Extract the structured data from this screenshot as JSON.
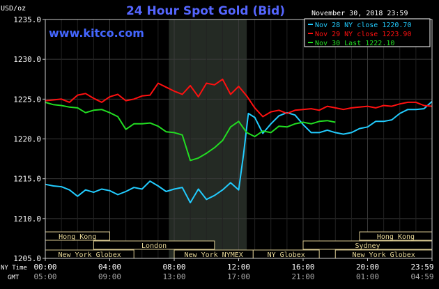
{
  "chart_data": {
    "type": "line",
    "title": "24 Hour Spot Gold (Bid)",
    "units_label": "USD/oz",
    "brand": "www.kitco.com",
    "date_label": "November 30, 2018 23:59",
    "xlabel": "",
    "ylabel": "",
    "ylim": [
      1205.0,
      1235.0
    ],
    "yticks": [
      "1235.0",
      "1230.0",
      "1225.0",
      "1220.0",
      "1215.0",
      "1210.0",
      "1205.0"
    ],
    "x_range_hours": [
      0,
      24
    ],
    "ny_time_label": "NY Time",
    "gmt_label": "GMT",
    "ny_ticks": [
      "00:00",
      "04:00",
      "08:00",
      "12:00",
      "16:00",
      "20:00",
      "23:59"
    ],
    "gmt_ticks": [
      "05:00",
      "09:00",
      "13:00",
      "17:00",
      "21:00",
      "01:00",
      "04:59"
    ],
    "shaded_session_hours": [
      7.67,
      12.5
    ],
    "markets": [
      {
        "name": "Hong Kong",
        "start": 0.0,
        "end": 4.0,
        "row": 0
      },
      {
        "name": "Hong Kong",
        "start": 19.5,
        "end": 24.0,
        "row": 0
      },
      {
        "name": "London",
        "start": 3.0,
        "end": 10.5,
        "row": 1
      },
      {
        "name": "Sydney",
        "start": 16.0,
        "end": 24.0,
        "row": 1
      },
      {
        "name": "New York Globex",
        "start": 0.0,
        "end": 5.5,
        "row": 2
      },
      {
        "name": "New York NYMEX",
        "start": 8.0,
        "end": 12.9,
        "row": 2
      },
      {
        "name": "NY Globex",
        "start": 12.9,
        "end": 17.0,
        "row": 2
      },
      {
        "name": "New York Globex",
        "start": 18.0,
        "end": 24.0,
        "row": 2
      }
    ],
    "series": [
      {
        "name": "Nov 28 NY close 1220.70",
        "color": "#22ccff",
        "x": [
          0,
          0.5,
          1,
          1.5,
          2,
          2.5,
          3,
          3.5,
          4,
          4.5,
          5,
          5.5,
          6,
          6.5,
          7,
          7.5,
          8,
          8.5,
          9,
          9.5,
          10,
          10.5,
          11,
          11.5,
          12,
          12.3,
          12.6,
          13,
          13.5,
          14,
          14.5,
          15,
          15.5,
          16,
          16.5,
          17,
          17.5,
          18,
          18.5,
          19,
          19.5,
          20,
          20.5,
          21,
          21.5,
          22,
          22.5,
          23,
          23.5,
          24
        ],
        "values": [
          1214.3,
          1214.1,
          1214.0,
          1213.6,
          1212.8,
          1213.6,
          1213.3,
          1213.7,
          1213.5,
          1213.0,
          1213.4,
          1213.9,
          1213.7,
          1214.7,
          1214.1,
          1213.4,
          1213.7,
          1213.9,
          1212.0,
          1213.7,
          1212.4,
          1212.9,
          1213.6,
          1214.5,
          1213.6,
          1218.0,
          1223.2,
          1222.7,
          1220.7,
          1221.9,
          1222.9,
          1223.3,
          1223.0,
          1221.8,
          1220.8,
          1220.8,
          1221.1,
          1220.8,
          1220.6,
          1220.8,
          1221.3,
          1221.5,
          1222.2,
          1222.2,
          1222.4,
          1223.2,
          1223.7,
          1223.7,
          1223.8,
          1224.7
        ]
      },
      {
        "name": "Nov 29 NY close 1223.90",
        "color": "#ff1010",
        "x": [
          0,
          0.5,
          1,
          1.5,
          2,
          2.5,
          3,
          3.5,
          4,
          4.5,
          5,
          5.5,
          6,
          6.5,
          7,
          7.5,
          8,
          8.5,
          9,
          9.5,
          10,
          10.5,
          11,
          11.5,
          12,
          12.5,
          13,
          13.5,
          14,
          14.5,
          15,
          15.5,
          16,
          16.5,
          17,
          17.5,
          18,
          18.5,
          19,
          19.5,
          20,
          20.5,
          21,
          21.5,
          22,
          22.5,
          23,
          23.5,
          24
        ],
        "values": [
          1224.8,
          1224.9,
          1225.0,
          1224.6,
          1225.5,
          1225.7,
          1225.1,
          1224.6,
          1225.3,
          1225.6,
          1224.8,
          1225.0,
          1225.4,
          1225.5,
          1227.0,
          1226.5,
          1226.0,
          1225.6,
          1226.7,
          1225.3,
          1227.0,
          1226.8,
          1227.5,
          1225.6,
          1226.6,
          1225.4,
          1223.9,
          1222.8,
          1223.4,
          1223.6,
          1223.2,
          1223.6,
          1223.7,
          1223.8,
          1223.6,
          1224.1,
          1223.9,
          1223.7,
          1223.9,
          1224.0,
          1224.1,
          1223.9,
          1224.2,
          1224.1,
          1224.4,
          1224.6,
          1224.6,
          1224.2,
          1224.1
        ]
      },
      {
        "name": "Nov 30 Last 1222.10",
        "color": "#22dd22",
        "x": [
          0,
          0.5,
          1,
          1.5,
          2,
          2.5,
          3,
          3.5,
          4,
          4.5,
          5,
          5.5,
          6,
          6.5,
          7,
          7.5,
          8,
          8.5,
          9,
          9.5,
          10,
          10.5,
          11,
          11.5,
          12,
          12.5,
          13,
          13.5,
          14,
          14.5,
          15,
          15.5,
          16,
          16.5,
          17,
          17.5,
          18
        ],
        "values": [
          1224.6,
          1224.3,
          1224.2,
          1224.0,
          1223.9,
          1223.3,
          1223.6,
          1223.7,
          1223.3,
          1222.8,
          1221.2,
          1221.9,
          1221.9,
          1222.0,
          1221.6,
          1220.9,
          1220.8,
          1220.5,
          1217.3,
          1217.6,
          1218.2,
          1218.9,
          1219.8,
          1221.5,
          1222.2,
          1220.8,
          1220.3,
          1221.0,
          1220.8,
          1221.6,
          1221.5,
          1221.9,
          1222.1,
          1221.9,
          1222.2,
          1222.3,
          1222.1
        ]
      }
    ]
  }
}
